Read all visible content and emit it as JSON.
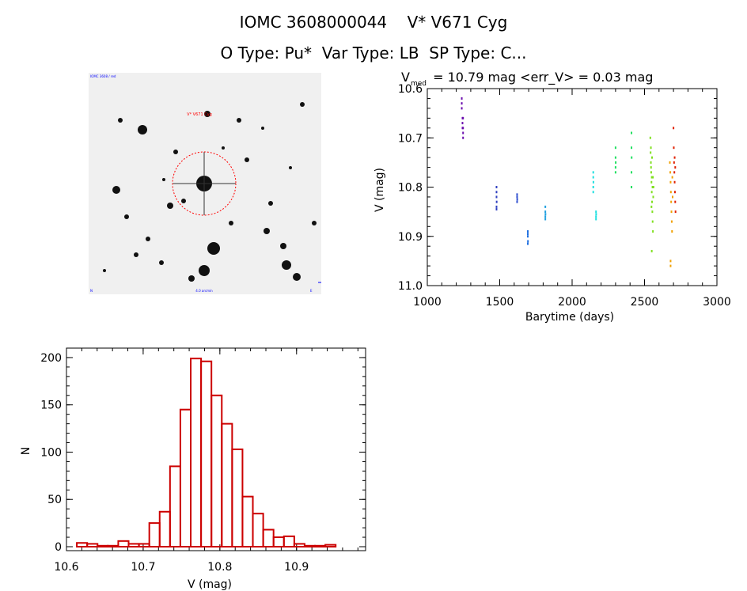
{
  "header": {
    "title": "IOMC 3608000044    V* V671 Cyg",
    "subtitle": "O Type: Pu*  Var Type: LB  SP Type: C..."
  },
  "stamp": {
    "target_label": "V* V671 Cyg",
    "corner_top_left": "IOMC 3608 / red",
    "corner_bottom_left": "N",
    "corner_bottom_center": "4.0 arcmin",
    "corner_bottom_right": "E"
  },
  "chart_data": [
    {
      "type": "scatter",
      "title_prefix": "V",
      "title_sub": "med",
      "title_rest": " = 10.79 mag <err_V> = 0.03 mag",
      "xlabel": "Barytime (days)",
      "ylabel": "V (mag)",
      "xlim": [
        1000,
        3000
      ],
      "ylim": [
        11.0,
        10.6
      ],
      "y_inverted": true,
      "xticks": [
        1000,
        1500,
        2000,
        2500,
        3000
      ],
      "yticks": [
        10.6,
        10.7,
        10.8,
        10.9,
        11.0
      ],
      "grid": false,
      "color_scale": "rainbow by time",
      "series": [
        {
          "color": "#6a0dad",
          "points": [
            [
              1238,
              10.62
            ],
            [
              1238,
              10.63
            ],
            [
              1238,
              10.64
            ],
            [
              1243,
              10.66
            ],
            [
              1243,
              10.67
            ],
            [
              1243,
              10.68
            ],
            [
              1247,
              10.69
            ],
            [
              1247,
              10.7
            ],
            [
              1247,
              10.68
            ],
            [
              1247,
              10.66
            ]
          ]
        },
        {
          "color": "#3040c0",
          "points": [
            [
              1478,
              10.8
            ],
            [
              1478,
              10.81
            ],
            [
              1478,
              10.82
            ],
            [
              1478,
              10.84
            ],
            [
              1479,
              10.83
            ],
            [
              1478,
              10.845
            ]
          ]
        },
        {
          "color": "#3050d0",
          "points": [
            [
              1620,
              10.815
            ],
            [
              1620,
              10.82
            ],
            [
              1621,
              10.825
            ],
            [
              1620,
              10.83
            ]
          ]
        },
        {
          "color": "#2070e0",
          "points": [
            [
              1694,
              10.89
            ],
            [
              1694,
              10.9
            ],
            [
              1695,
              10.91
            ],
            [
              1694,
              10.895
            ],
            [
              1694,
              10.915
            ]
          ]
        },
        {
          "color": "#20a0e0",
          "points": [
            [
              1815,
              10.84
            ],
            [
              1815,
              10.85
            ],
            [
              1815,
              10.86
            ],
            [
              1816,
              10.855
            ],
            [
              1815,
              10.865
            ]
          ]
        },
        {
          "color": "#20e0e0",
          "points": [
            [
              2146,
              10.77
            ],
            [
              2146,
              10.78
            ],
            [
              2147,
              10.79
            ],
            [
              2146,
              10.8
            ],
            [
              2146,
              10.81
            ],
            [
              2165,
              10.85
            ],
            [
              2165,
              10.86
            ],
            [
              2166,
              10.855
            ],
            [
              2165,
              10.865
            ]
          ]
        },
        {
          "color": "#20e060",
          "points": [
            [
              2300,
              10.72
            ],
            [
              2300,
              10.74
            ],
            [
              2301,
              10.75
            ],
            [
              2300,
              10.76
            ],
            [
              2300,
              10.77
            ],
            [
              2410,
              10.69
            ],
            [
              2410,
              10.72
            ],
            [
              2411,
              10.74
            ],
            [
              2410,
              10.77
            ],
            [
              2410,
              10.8
            ]
          ]
        },
        {
          "color": "#80e020",
          "points": [
            [
              2540,
              10.7
            ],
            [
              2542,
              10.73
            ],
            [
              2544,
              10.75
            ],
            [
              2546,
              10.77
            ],
            [
              2548,
              10.79
            ],
            [
              2550,
              10.81
            ],
            [
              2552,
              10.83
            ],
            [
              2554,
              10.85
            ],
            [
              2556,
              10.87
            ],
            [
              2558,
              10.89
            ],
            [
              2545,
              10.76
            ],
            [
              2550,
              10.78
            ],
            [
              2555,
              10.8
            ],
            [
              2560,
              10.82
            ],
            [
              2548,
              10.84
            ],
            [
              2552,
              10.74
            ],
            [
              2544,
              10.72
            ],
            [
              2558,
              10.78
            ],
            [
              2562,
              10.8
            ],
            [
              2550,
              10.93
            ]
          ]
        },
        {
          "color": "#f0a000",
          "points": [
            [
              2675,
              10.75
            ],
            [
              2678,
              10.77
            ],
            [
              2680,
              10.79
            ],
            [
              2682,
              10.81
            ],
            [
              2684,
              10.83
            ],
            [
              2686,
              10.85
            ],
            [
              2688,
              10.87
            ],
            [
              2690,
              10.89
            ],
            [
              2680,
              10.95
            ],
            [
              2680,
              10.96
            ],
            [
              2692,
              10.78
            ],
            [
              2694,
              10.82
            ]
          ]
        },
        {
          "color": "#e02000",
          "points": [
            [
              2700,
              10.68
            ],
            [
              2702,
              10.72
            ],
            [
              2704,
              10.75
            ],
            [
              2706,
              10.77
            ],
            [
              2708,
              10.79
            ],
            [
              2710,
              10.81
            ],
            [
              2712,
              10.83
            ],
            [
              2714,
              10.85
            ],
            [
              2708,
              10.74
            ],
            [
              2712,
              10.76
            ]
          ]
        }
      ]
    },
    {
      "type": "bar",
      "subtype": "histogram",
      "xlabel": "V (mag)",
      "ylabel": "N",
      "xlim": [
        10.6,
        10.99
      ],
      "ylim": [
        0,
        210
      ],
      "xticks": [
        10.6,
        10.7,
        10.8,
        10.9
      ],
      "xtick_labels": [
        "10.6",
        "10.7",
        "10.8",
        "10.9"
      ],
      "yticks": [
        0,
        50,
        100,
        150,
        200
      ],
      "bar_color": "#cc0000",
      "bin_width": 0.0135,
      "bin_start": 10.6135,
      "values": [
        4,
        3,
        1,
        1,
        6,
        3,
        3,
        25,
        37,
        85,
        145,
        199,
        196,
        160,
        130,
        103,
        53,
        35,
        18,
        10,
        11,
        3,
        1,
        1,
        2
      ]
    }
  ]
}
